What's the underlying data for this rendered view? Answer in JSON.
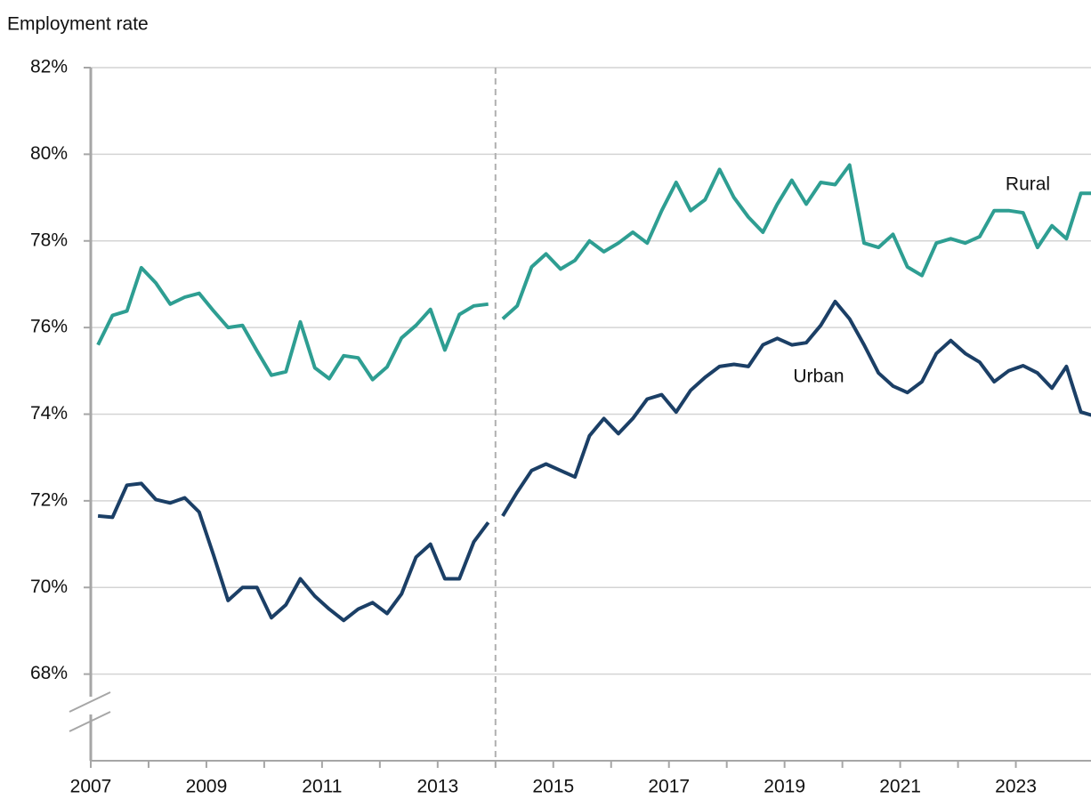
{
  "chart_data": {
    "type": "line",
    "title": "Employment rate",
    "x": [
      2007.125,
      2007.375,
      2007.625,
      2007.875,
      2008.125,
      2008.375,
      2008.625,
      2008.875,
      2009.125,
      2009.375,
      2009.625,
      2009.875,
      2010.125,
      2010.375,
      2010.625,
      2010.875,
      2011.125,
      2011.375,
      2011.625,
      2011.875,
      2012.125,
      2012.375,
      2012.625,
      2012.875,
      2013.125,
      2013.375,
      2013.625,
      2013.875,
      2014,
      2014.125,
      2014.375,
      2014.625,
      2014.875,
      2015.125,
      2015.375,
      2015.625,
      2015.875,
      2016.125,
      2016.375,
      2016.625,
      2016.875,
      2017.125,
      2017.375,
      2017.625,
      2017.875,
      2018.125,
      2018.375,
      2018.625,
      2018.875,
      2019.125,
      2019.375,
      2019.625,
      2019.875,
      2020.125,
      2020.375,
      2020.625,
      2020.875,
      2021.125,
      2021.375,
      2021.625,
      2021.875,
      2022.125,
      2022.375,
      2022.625,
      2022.875,
      2023.125,
      2023.375,
      2023.625,
      2023.875,
      2024.125,
      2024.375
    ],
    "series": [
      {
        "name": "Rural",
        "color": "#2e9e92",
        "values": [
          75.6,
          76.28,
          76.38,
          77.38,
          77.03,
          76.54,
          76.7,
          76.79,
          76.38,
          76.0,
          76.05,
          75.46,
          74.9,
          74.98,
          76.13,
          75.07,
          74.82,
          75.35,
          75.3,
          74.8,
          75.09,
          75.76,
          76.05,
          76.42,
          75.48,
          76.3,
          76.5,
          76.54,
          null,
          76.2,
          76.5,
          77.4,
          77.7,
          77.35,
          77.55,
          78.0,
          77.75,
          77.95,
          78.2,
          77.95,
          78.7,
          79.35,
          78.7,
          78.95,
          79.65,
          79.0,
          78.55,
          78.2,
          78.85,
          79.4,
          78.85,
          79.35,
          79.3,
          79.75,
          77.95,
          77.85,
          78.15,
          77.4,
          77.2,
          77.95,
          78.05,
          77.95,
          78.1,
          78.7,
          78.7,
          78.65,
          77.85,
          78.35,
          78.05,
          79.1,
          79.1
        ]
      },
      {
        "name": "Urban",
        "color": "#1b3f66",
        "values": [
          71.65,
          71.62,
          72.36,
          72.4,
          72.03,
          71.95,
          72.07,
          71.74,
          70.74,
          69.7,
          70.0,
          70.0,
          69.3,
          69.6,
          70.2,
          69.8,
          69.5,
          69.24,
          69.5,
          69.65,
          69.4,
          69.85,
          70.7,
          71.0,
          70.2,
          70.2,
          71.05,
          71.5,
          null,
          71.65,
          72.2,
          72.7,
          72.85,
          72.7,
          72.55,
          73.5,
          73.9,
          73.55,
          73.9,
          74.35,
          74.45,
          74.05,
          74.55,
          74.85,
          75.1,
          75.15,
          75.1,
          75.6,
          75.75,
          75.6,
          75.65,
          76.05,
          76.6,
          76.2,
          75.6,
          74.95,
          74.65,
          74.5,
          74.75,
          75.4,
          75.7,
          75.4,
          75.2,
          74.75,
          75.0,
          75.12,
          74.95,
          74.6,
          75.1,
          74.05,
          73.95
        ]
      }
    ],
    "xlim": [
      2007,
      2024.3
    ],
    "xticks": [
      2007,
      2009,
      2011,
      2013,
      2015,
      2017,
      2019,
      2021,
      2023
    ],
    "ylim": [
      66,
      82
    ],
    "yticks": [
      {
        "value": 68,
        "label": "68%"
      },
      {
        "value": 70,
        "label": "70%"
      },
      {
        "value": 72,
        "label": "72%"
      },
      {
        "value": 74,
        "label": "74%"
      },
      {
        "value": 76,
        "label": "76%"
      },
      {
        "value": 78,
        "label": "78%"
      },
      {
        "value": 80,
        "label": "80%"
      },
      {
        "value": 82,
        "label": "82%"
      }
    ],
    "vline": 2014,
    "grid": true
  }
}
